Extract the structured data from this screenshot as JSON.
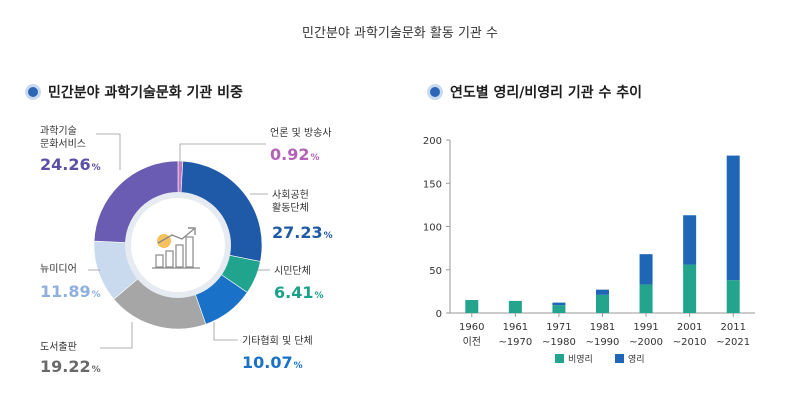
{
  "title": "민간분야 과학기술문화 활동 기관 수",
  "colors": {
    "accent": "#2b67b5",
    "segments": [
      "#c277c4",
      "#1f5aa8",
      "#21a48d",
      "#1a72c8",
      "#a6a6a6",
      "#c9d9ee",
      "#6a5bb3"
    ],
    "nonprofit": "#23a48d",
    "profit": "#1f67b6"
  },
  "icon": "chart-growth-icon",
  "chart_data": [
    {
      "type": "pie",
      "title": "민간분야 과학기술문화 기관 비중",
      "slices": [
        {
          "label": "언론 및 방송사",
          "value": 0.92,
          "value_text": "0.92",
          "unit": "%"
        },
        {
          "label": "사회공헌 활동단체",
          "value": 27.23,
          "value_text": "27.23",
          "unit": "%"
        },
        {
          "label": "시민단체",
          "value": 6.41,
          "value_text": "6.41",
          "unit": "%"
        },
        {
          "label": "기타협회 및 단체",
          "value": 10.07,
          "value_text": "10.07",
          "unit": "%"
        },
        {
          "label": "도서출판",
          "value": 19.22,
          "value_text": "19.22",
          "unit": "%"
        },
        {
          "label": "뉴미디어",
          "value": 11.89,
          "value_text": "11.89",
          "unit": "%"
        },
        {
          "label": "과학기술 문화서비스",
          "value": 24.26,
          "value_text": "24.26",
          "unit": "%"
        }
      ]
    },
    {
      "type": "bar",
      "stacked": true,
      "title": "연도별 영리/비영리 기관 수 추이",
      "categories": [
        [
          "1960",
          "이전"
        ],
        [
          "1961",
          "~1970"
        ],
        [
          "1971",
          "~1980"
        ],
        [
          "1981",
          "~1990"
        ],
        [
          "1991",
          "~2000"
        ],
        [
          "2001",
          "~2010"
        ],
        [
          "2011",
          "~2021"
        ]
      ],
      "series": [
        {
          "name": "비영리",
          "values": [
            15,
            14,
            9,
            21,
            33,
            56,
            38
          ]
        },
        {
          "name": "영리",
          "values": [
            0,
            0,
            3,
            6,
            35,
            57,
            144
          ]
        }
      ],
      "ylim": [
        0,
        200
      ],
      "yticks": [
        0,
        50,
        100,
        150,
        200
      ],
      "grid": false,
      "legend": "bottom"
    }
  ]
}
